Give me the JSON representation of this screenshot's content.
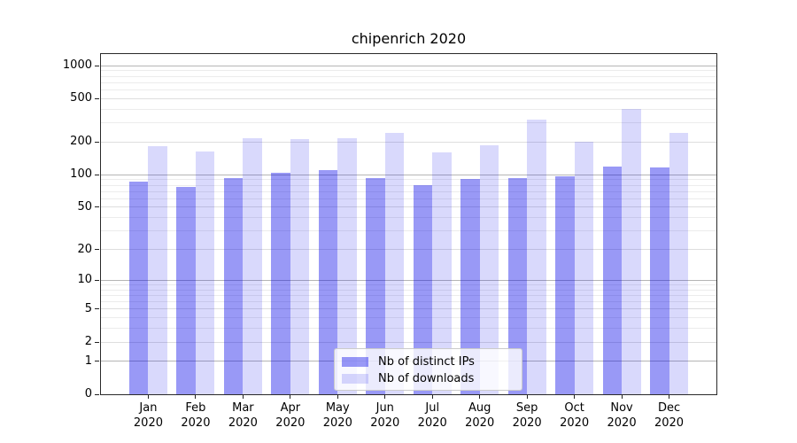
{
  "chart_data": {
    "type": "bar",
    "title": "chipenrich 2020",
    "xlabel": "",
    "ylabel": "",
    "year": "2020",
    "categories": [
      "Jan",
      "Feb",
      "Mar",
      "Apr",
      "May",
      "Jun",
      "Jul",
      "Aug",
      "Sep",
      "Oct",
      "Nov",
      "Dec"
    ],
    "series": [
      {
        "name": "Nb of distinct IPs",
        "color": "rgba(0,0,232,0.40)",
        "values": [
          86,
          78,
          93,
          104,
          110,
          93,
          80,
          91,
          94,
          97,
          120,
          118
        ]
      },
      {
        "name": "Nb of downloads",
        "color": "rgba(0,0,232,0.15)",
        "values": [
          183,
          163,
          218,
          212,
          218,
          241,
          160,
          188,
          319,
          201,
          400,
          242
        ]
      }
    ],
    "yscale": "log1p",
    "ylim": [
      0,
      1280
    ],
    "yticks": [
      1000,
      500,
      200,
      100,
      50,
      20,
      10,
      5,
      2,
      1,
      0
    ],
    "grid": "horizontal",
    "grid_values": {
      "major": [
        1,
        10,
        100,
        1000
      ],
      "mid": [
        2,
        5,
        20,
        50,
        200,
        500
      ],
      "minor": [
        3,
        4,
        6,
        7,
        8,
        9,
        30,
        40,
        60,
        70,
        80,
        90,
        300,
        400,
        600,
        700,
        800,
        900
      ]
    },
    "grid_colors": {
      "major": "#b5b5b5",
      "mid": "#dedede",
      "minor": "#ececec"
    },
    "legend_position": "lower-center-inside",
    "colors": {
      "spine": "#2a2a2a",
      "text": "#000000",
      "background": "#ffffff"
    }
  }
}
